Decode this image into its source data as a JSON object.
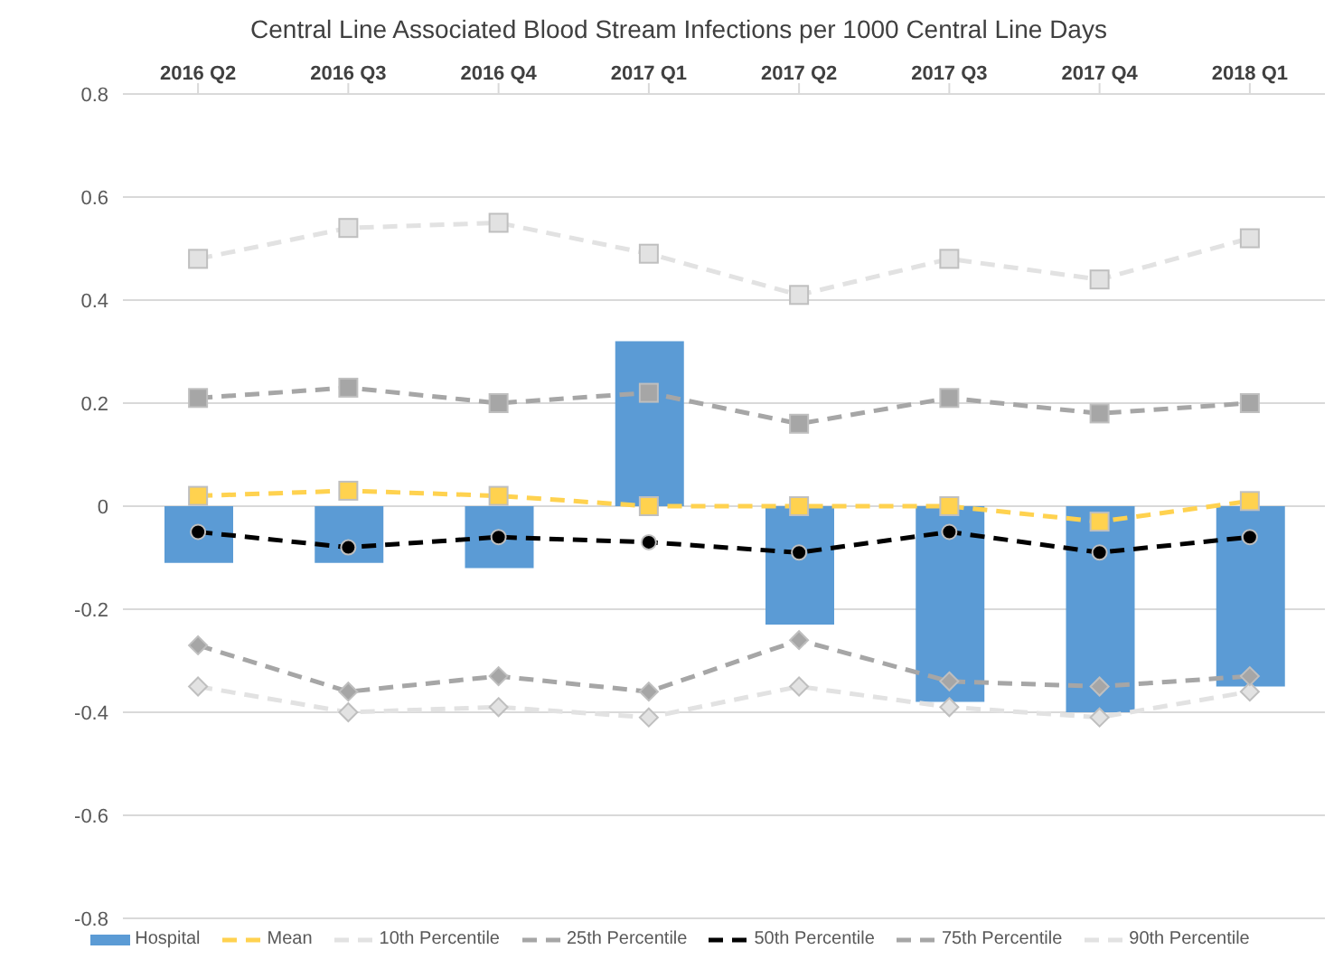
{
  "chart_data": {
    "type": "bar",
    "title": "Central Line Associated Blood Stream Infections per 1000 Central Line Days",
    "categories": [
      "2016 Q2",
      "2016 Q3",
      "2016 Q4",
      "2017 Q1",
      "2017 Q2",
      "2017 Q3",
      "2017 Q4",
      "2018 Q1"
    ],
    "series": [
      {
        "name": "Hospital",
        "color": "#5b9bd5",
        "values": [
          -0.11,
          -0.11,
          -0.12,
          0.32,
          -0.23,
          -0.38,
          -0.4,
          -0.35
        ]
      },
      {
        "name": "Mean",
        "type": "line",
        "color": "#ffd24f",
        "marker": "square",
        "line_style": "dashed",
        "values": [
          0.02,
          0.03,
          0.02,
          0.0,
          0.0,
          0.0,
          -0.03,
          0.01
        ]
      },
      {
        "name": "10th Percentile",
        "type": "line",
        "color": "#e2e2e2",
        "marker": "diamond",
        "line_style": "dashed",
        "values": [
          -0.35,
          -0.4,
          -0.39,
          -0.41,
          -0.35,
          -0.39,
          -0.41,
          -0.36
        ]
      },
      {
        "name": "25th Percentile",
        "type": "line",
        "color": "#a6a6a6",
        "marker": "diamond",
        "line_style": "dashed",
        "values": [
          -0.27,
          -0.36,
          -0.33,
          -0.36,
          -0.26,
          -0.34,
          -0.35,
          -0.33
        ]
      },
      {
        "name": "50th Percentile",
        "type": "line",
        "color": "#000000",
        "marker": "circle",
        "line_style": "dashed",
        "values": [
          -0.05,
          -0.08,
          -0.06,
          -0.07,
          -0.09,
          -0.05,
          -0.09,
          -0.06
        ]
      },
      {
        "name": "75th Percentile",
        "type": "line",
        "color": "#a6a6a6",
        "marker": "square",
        "line_style": "dashed",
        "values": [
          0.21,
          0.23,
          0.2,
          0.22,
          0.16,
          0.21,
          0.18,
          0.2
        ]
      },
      {
        "name": "90th Percentile",
        "type": "line",
        "color": "#e2e2e2",
        "marker": "square",
        "line_style": "dashed",
        "values": [
          0.48,
          0.54,
          0.55,
          0.49,
          0.41,
          0.48,
          0.44,
          0.52
        ]
      }
    ],
    "ylim": [
      -0.8,
      0.8
    ],
    "yticks": [
      -0.8,
      -0.6,
      -0.4,
      -0.2,
      0,
      0.2,
      0.4,
      0.6,
      0.8
    ],
    "grid": "y",
    "legend": "bottom"
  }
}
